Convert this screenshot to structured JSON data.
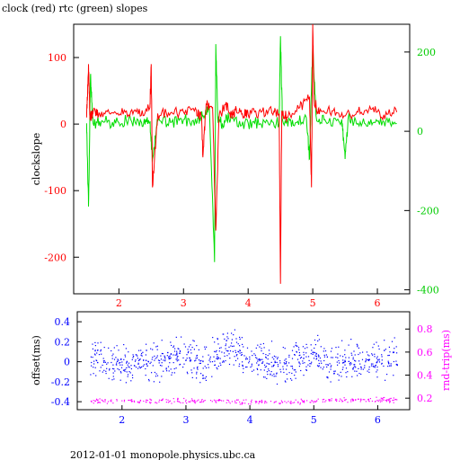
{
  "title": "clock (red) rtc (green) slopes",
  "footer": "2012-01-01 monopole.physics.ubc.ca",
  "colors": {
    "clock": "#ff0000",
    "rtc": "#00dd00",
    "offset": "#0000ff",
    "rndtrip": "#ff00ff",
    "axis": "#000000"
  },
  "chart_data": [
    {
      "type": "line",
      "title": "clock (red) rtc (green) slopes",
      "xlim": [
        1.3,
        6.5
      ],
      "x_ticks": [
        2,
        3,
        4,
        5,
        6
      ],
      "x_tick_labels": [
        "2",
        "3",
        "4",
        "5",
        "6"
      ],
      "ylabel_left": "clockslope",
      "ylim_left": [
        -255,
        150
      ],
      "y_ticks_left": [
        100,
        0,
        -100,
        -200
      ],
      "y_tick_labels_left": [
        "100",
        "0",
        "-100",
        "-200"
      ],
      "ylim_right": [
        -410,
        270
      ],
      "y_ticks_right": [
        200,
        0,
        -200,
        -400
      ],
      "y_tick_labels_right": [
        "200",
        "0",
        "-200",
        "-400"
      ],
      "grid": false,
      "series": [
        {
          "name": "clock",
          "axis": "left",
          "x": [
            1.5,
            1.53,
            1.55,
            1.57,
            1.6,
            1.7,
            1.9,
            2.1,
            2.3,
            2.48,
            2.5,
            2.52,
            2.6,
            2.8,
            3.0,
            3.2,
            3.28,
            3.3,
            3.35,
            3.45,
            3.5,
            3.55,
            3.65,
            3.75,
            3.8,
            3.9,
            4.0,
            4.2,
            4.4,
            4.48,
            4.5,
            4.52,
            4.6,
            4.8,
            4.95,
            4.98,
            5.0,
            5.02,
            5.1,
            5.3,
            5.5,
            5.7,
            5.9,
            6.1,
            6.3
          ],
          "y": [
            10,
            90,
            15,
            12,
            18,
            16,
            17,
            18,
            15,
            25,
            90,
            -95,
            16,
            17,
            18,
            20,
            10,
            -50,
            30,
            25,
            -160,
            10,
            30,
            10,
            20,
            15,
            14,
            18,
            20,
            15,
            -240,
            20,
            10,
            25,
            40,
            -95,
            150,
            35,
            15,
            20,
            12,
            18,
            22,
            14,
            18
          ]
        },
        {
          "name": "rtc",
          "axis": "right",
          "x": [
            1.5,
            1.53,
            1.56,
            1.6,
            1.75,
            1.95,
            2.15,
            2.35,
            2.48,
            2.52,
            2.6,
            2.8,
            3.0,
            3.2,
            3.3,
            3.4,
            3.48,
            3.5,
            3.53,
            3.6,
            3.7,
            3.9,
            4.1,
            4.3,
            4.48,
            4.5,
            4.53,
            4.7,
            4.9,
            4.95,
            5.0,
            5.05,
            5.2,
            5.45,
            5.5,
            5.55,
            5.7,
            5.9,
            6.1,
            6.3
          ],
          "y": [
            20,
            -190,
            140,
            20,
            25,
            20,
            30,
            22,
            20,
            -70,
            25,
            22,
            30,
            20,
            40,
            60,
            -330,
            220,
            30,
            20,
            35,
            15,
            20,
            25,
            20,
            240,
            30,
            15,
            35,
            -70,
            220,
            40,
            25,
            30,
            -70,
            35,
            20,
            30,
            25,
            20
          ]
        }
      ]
    },
    {
      "type": "scatter",
      "xlim": [
        1.3,
        6.5
      ],
      "x_ticks": [
        2,
        3,
        4,
        5,
        6
      ],
      "x_tick_labels": [
        "2",
        "3",
        "4",
        "5",
        "6"
      ],
      "ylabel_left": "offset(ms)",
      "ylim_left": [
        -0.48,
        0.5
      ],
      "y_ticks_left": [
        0.4,
        0.2,
        0,
        -0.2,
        -0.4
      ],
      "y_tick_labels_left": [
        "0.4",
        "0.2",
        "0",
        "-0.2",
        "-0.4"
      ],
      "ylabel_right": "rnd-trip(ms)",
      "ylim_right": [
        0.1,
        0.95
      ],
      "y_ticks_right": [
        0.8,
        0.6,
        0.4,
        0.2
      ],
      "y_tick_labels_right": [
        "0.8",
        "0.6",
        "0.4",
        "0.2"
      ],
      "grid": false,
      "series": [
        {
          "name": "offset",
          "axis": "left",
          "x": [
            1.5,
            1.75,
            2.0,
            2.25,
            2.5,
            2.75,
            3.0,
            3.25,
            3.5,
            3.75,
            4.0,
            4.25,
            4.5,
            4.75,
            5.0,
            5.25,
            5.5,
            5.75,
            6.0,
            6.3
          ],
          "y": [
            0.05,
            0.0,
            -0.02,
            0.02,
            0.0,
            0.03,
            0.05,
            -0.02,
            0.08,
            0.15,
            0.0,
            0.02,
            -0.05,
            0.05,
            0.1,
            -0.05,
            0.05,
            0.0,
            0.02,
            0.03
          ]
        },
        {
          "name": "rnd-trip",
          "axis": "right",
          "x": [
            1.5,
            2.0,
            2.5,
            3.0,
            3.5,
            4.0,
            4.5,
            5.0,
            5.5,
            6.0,
            6.3
          ],
          "y": [
            0.18,
            0.18,
            0.18,
            0.18,
            0.18,
            0.17,
            0.17,
            0.18,
            0.19,
            0.19,
            0.19
          ]
        }
      ]
    }
  ]
}
